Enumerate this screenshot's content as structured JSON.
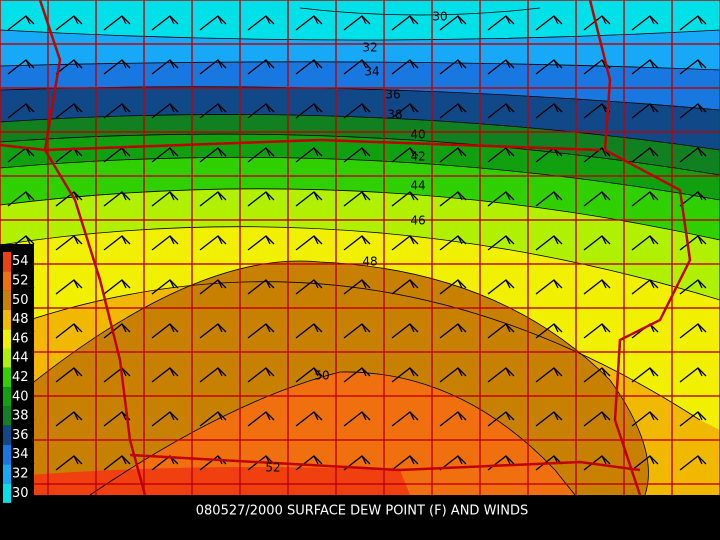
{
  "caption": "080527/2000 SURFACE DEW POINT (F) AND WINDS",
  "contours": [
    {
      "label": 30
    },
    {
      "label": 32
    },
    {
      "label": 34
    },
    {
      "label": 36
    },
    {
      "label": 38
    },
    {
      "label": 40
    },
    {
      "label": 42
    },
    {
      "label": 44
    },
    {
      "label": 46
    },
    {
      "label": 48
    },
    {
      "label": 50
    },
    {
      "label": 52
    }
  ],
  "legend": [
    {
      "label": 54,
      "color": "#f04010"
    },
    {
      "label": 52,
      "color": "#f07010"
    },
    {
      "label": 50,
      "color": "#c88000"
    },
    {
      "label": 48,
      "color": "#f0b800"
    },
    {
      "label": 46,
      "color": "#f0f000"
    },
    {
      "label": 44,
      "color": "#b0f000"
    },
    {
      "label": 42,
      "color": "#30d000"
    },
    {
      "label": 40,
      "color": "#10a010"
    },
    {
      "label": 38,
      "color": "#108020"
    },
    {
      "label": 36,
      "color": "#104888"
    },
    {
      "label": 34,
      "color": "#1878e0"
    },
    {
      "label": 32,
      "color": "#18a8f8"
    },
    {
      "label": 30,
      "color": "#00e0e8"
    }
  ]
}
